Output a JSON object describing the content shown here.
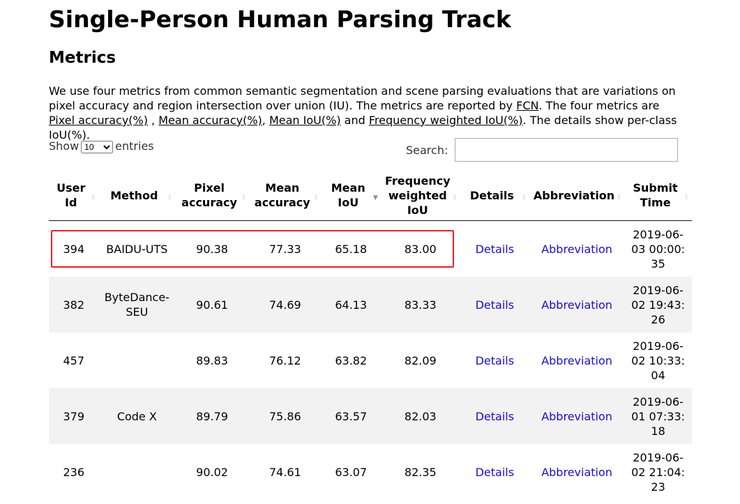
{
  "title": "Single-Person Human Parsing Track",
  "section": "Metrics",
  "description": {
    "p1": "We use four metrics from common semantic segmentation and scene parsing evaluations that are variations on pixel accuracy and region intersection over union (IU). The metrics are reported by ",
    "fcn": "FCN",
    "p2": ". The four metrics are ",
    "pa": "Pixel accuracy(%)",
    "p3": " , ",
    "ma": "Mean accuracy(%)",
    "p4": ", ",
    "miou": "Mean IoU(%)",
    "p5": " and ",
    "fw": "Frequency weighted IoU(%)",
    "p6": ". The details show per-class IoU(%)."
  },
  "length": {
    "show": "Show",
    "value": "10",
    "entries": "entries"
  },
  "search": {
    "label": "Search:",
    "value": ""
  },
  "columns": [
    "User Id",
    "Method",
    "Pixel accuracy",
    "Mean accuracy",
    "Mean IoU",
    "Frequency weighted IoU",
    "Details",
    "Abbreviation",
    "Submit Time"
  ],
  "sorted_column": "Mean IoU",
  "rows": [
    [
      "394",
      "BAIDU-UTS",
      "90.38",
      "77.33",
      "65.18",
      "83.00",
      "Details",
      "Abbreviation",
      "2019-06-03 00:00:35"
    ],
    [
      "382",
      "ByteDance-SEU",
      "90.61",
      "74.69",
      "64.13",
      "83.33",
      "Details",
      "Abbreviation",
      "2019-06-02 19:43:26"
    ],
    [
      "457",
      "",
      "89.83",
      "76.12",
      "63.82",
      "82.09",
      "Details",
      "Abbreviation",
      "2019-06-02 10:33:04"
    ],
    [
      "379",
      "Code X",
      "89.79",
      "75.86",
      "63.57",
      "82.03",
      "Details",
      "Abbreviation",
      "2019-06-01 07:33:18"
    ],
    [
      "236",
      "",
      "90.02",
      "74.61",
      "63.07",
      "82.35",
      "Details",
      "Abbreviation",
      "2019-06-02 21:04:23"
    ]
  ],
  "highlight_color": "#e8202a",
  "link_color": "#1a0dcc"
}
